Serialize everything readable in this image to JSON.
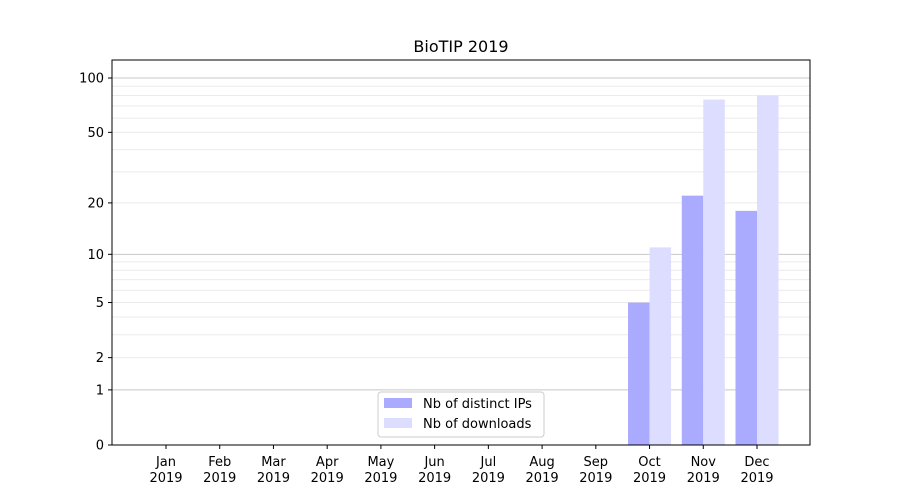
{
  "chart_data": {
    "type": "bar",
    "title": "BioTIP 2019",
    "xlabel": "",
    "ylabel": "",
    "y_scale": "log(1+y)",
    "ylim": [
      0,
      120
    ],
    "yticks": [
      0,
      1,
      2,
      5,
      10,
      20,
      50,
      100
    ],
    "grid": true,
    "legend_position": "lower center",
    "categories": [
      "Jan\n2019",
      "Feb\n2019",
      "Mar\n2019",
      "Apr\n2019",
      "May\n2019",
      "Jun\n2019",
      "Jul\n2019",
      "Aug\n2019",
      "Sep\n2019",
      "Oct\n2019",
      "Nov\n2019",
      "Dec\n2019"
    ],
    "series": [
      {
        "name": "Nb of distinct IPs",
        "color": "#aaaaff",
        "values": [
          0,
          0,
          0,
          0,
          0,
          0,
          0,
          0,
          0,
          5,
          22,
          18
        ]
      },
      {
        "name": "Nb of downloads",
        "color": "#ddddff",
        "values": [
          0,
          0,
          0,
          0,
          0,
          0,
          0,
          0,
          0,
          11,
          76,
          80
        ]
      }
    ]
  }
}
